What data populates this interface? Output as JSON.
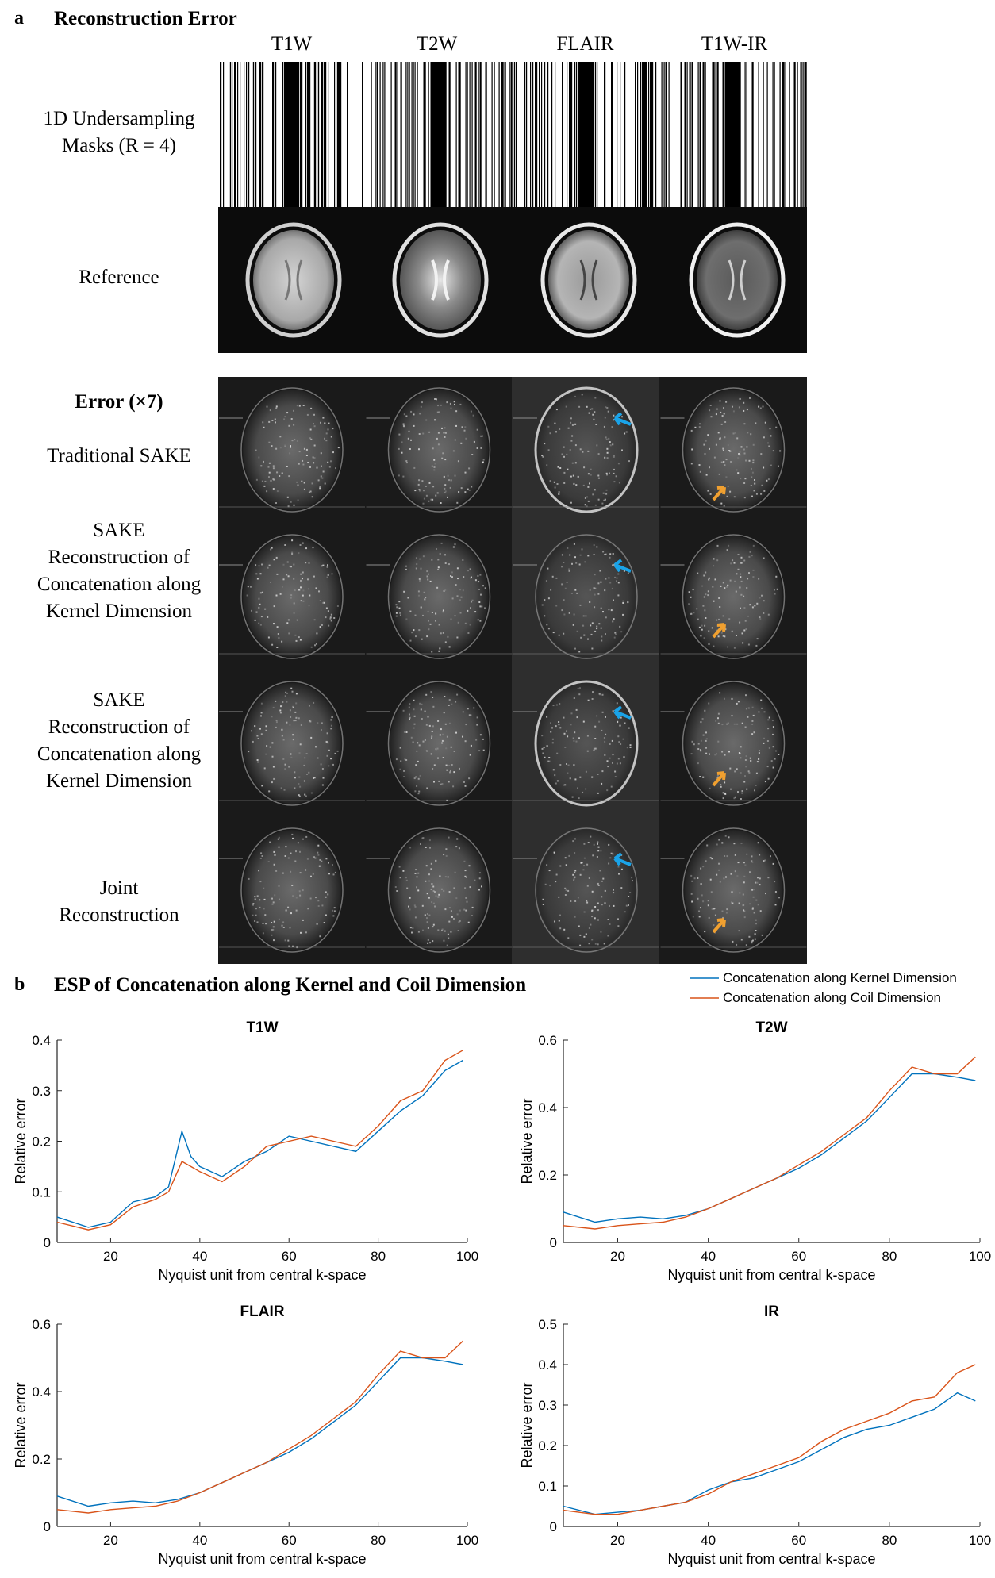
{
  "panel_a": {
    "label": "a",
    "title": "Reconstruction Error",
    "columns": [
      "T1W",
      "T2W",
      "FLAIR",
      "T1W-IR"
    ],
    "row_masks_line1": "1D Undersampling",
    "row_masks_line2": "Masks (R = 4)",
    "row_reference": "Reference",
    "error_header": "Error (×7)",
    "methods": [
      {
        "lines": [
          "Traditional SAKE"
        ]
      },
      {
        "lines": [
          "SAKE",
          "Reconstruction of",
          "Concatenation along",
          "Kernel Dimension"
        ]
      },
      {
        "lines": [
          "SAKE",
          "Reconstruction of",
          "Concatenation along",
          "Kernel Dimension"
        ]
      },
      {
        "lines": [
          "Joint",
          "Reconstruction"
        ]
      }
    ],
    "arrow_colors": {
      "blue": "#1aa3e8",
      "orange": "#f0a030"
    }
  },
  "panel_b": {
    "label": "b",
    "title": "ESP of Concatenation along Kernel and Coil Dimension",
    "legend": [
      {
        "name": "Concatenation along Kernel Dimension",
        "color": "#0072BD"
      },
      {
        "name": "Concatenation along Coil Dimension",
        "color": "#D95319"
      }
    ]
  },
  "chart_data": [
    {
      "type": "line",
      "title": "T1W",
      "xlabel": "Nyquist unit from central k-space",
      "ylabel": "Relative error",
      "xlim": [
        8,
        100
      ],
      "ylim": [
        0,
        0.4
      ],
      "xticks": [
        20,
        40,
        60,
        80,
        100
      ],
      "yticks": [
        0,
        0.1,
        0.2,
        0.3,
        0.4
      ],
      "x": [
        8,
        15,
        20,
        25,
        30,
        33,
        36,
        38,
        40,
        45,
        50,
        55,
        60,
        65,
        70,
        75,
        80,
        85,
        90,
        95,
        99
      ],
      "series": [
        {
          "values": [
            0.05,
            0.03,
            0.04,
            0.08,
            0.09,
            0.11,
            0.22,
            0.17,
            0.15,
            0.13,
            0.16,
            0.18,
            0.21,
            0.2,
            0.19,
            0.18,
            0.22,
            0.26,
            0.29,
            0.34,
            0.36
          ]
        },
        {
          "values": [
            0.04,
            0.025,
            0.035,
            0.07,
            0.085,
            0.1,
            0.16,
            0.15,
            0.14,
            0.12,
            0.15,
            0.19,
            0.2,
            0.21,
            0.2,
            0.19,
            0.23,
            0.28,
            0.3,
            0.36,
            0.38
          ]
        }
      ]
    },
    {
      "type": "line",
      "title": "T2W",
      "xlabel": "Nyquist unit from central k-space",
      "ylabel": "Relative error",
      "xlim": [
        8,
        100
      ],
      "ylim": [
        0,
        0.6
      ],
      "xticks": [
        20,
        40,
        60,
        80,
        100
      ],
      "yticks": [
        0,
        0.2,
        0.4,
        0.6
      ],
      "x": [
        8,
        15,
        20,
        25,
        30,
        35,
        40,
        45,
        50,
        55,
        60,
        65,
        70,
        75,
        80,
        85,
        90,
        95,
        99
      ],
      "series": [
        {
          "values": [
            0.09,
            0.06,
            0.07,
            0.075,
            0.07,
            0.08,
            0.1,
            0.13,
            0.16,
            0.19,
            0.22,
            0.26,
            0.31,
            0.36,
            0.43,
            0.5,
            0.5,
            0.49,
            0.48
          ]
        },
        {
          "values": [
            0.05,
            0.04,
            0.05,
            0.055,
            0.06,
            0.075,
            0.1,
            0.13,
            0.16,
            0.19,
            0.23,
            0.27,
            0.32,
            0.37,
            0.45,
            0.52,
            0.5,
            0.5,
            0.55
          ]
        }
      ]
    },
    {
      "type": "line",
      "title": "FLAIR",
      "xlabel": "Nyquist unit from central k-space",
      "ylabel": "Relative error",
      "xlim": [
        8,
        100
      ],
      "ylim": [
        0,
        0.6
      ],
      "xticks": [
        20,
        40,
        60,
        80,
        100
      ],
      "yticks": [
        0,
        0.2,
        0.4,
        0.6
      ],
      "x": [
        8,
        15,
        20,
        25,
        30,
        35,
        40,
        45,
        50,
        55,
        60,
        65,
        70,
        75,
        80,
        85,
        90,
        95,
        99
      ],
      "series": [
        {
          "values": [
            0.09,
            0.06,
            0.07,
            0.075,
            0.07,
            0.08,
            0.1,
            0.13,
            0.16,
            0.19,
            0.22,
            0.26,
            0.31,
            0.36,
            0.43,
            0.5,
            0.5,
            0.49,
            0.48
          ]
        },
        {
          "values": [
            0.05,
            0.04,
            0.05,
            0.055,
            0.06,
            0.075,
            0.1,
            0.13,
            0.16,
            0.19,
            0.23,
            0.27,
            0.32,
            0.37,
            0.45,
            0.52,
            0.5,
            0.5,
            0.55
          ]
        }
      ]
    },
    {
      "type": "line",
      "title": "IR",
      "xlabel": "Nyquist unit from central k-space",
      "ylabel": "Relative error",
      "xlim": [
        8,
        100
      ],
      "ylim": [
        0,
        0.5
      ],
      "xticks": [
        20,
        40,
        60,
        80,
        100
      ],
      "yticks": [
        0,
        0.1,
        0.2,
        0.3,
        0.4,
        0.5
      ],
      "x": [
        8,
        15,
        20,
        25,
        30,
        35,
        40,
        45,
        50,
        55,
        60,
        65,
        70,
        75,
        80,
        85,
        90,
        95,
        99
      ],
      "series": [
        {
          "values": [
            0.05,
            0.03,
            0.035,
            0.04,
            0.05,
            0.06,
            0.09,
            0.11,
            0.12,
            0.14,
            0.16,
            0.19,
            0.22,
            0.24,
            0.25,
            0.27,
            0.29,
            0.33,
            0.31
          ]
        },
        {
          "values": [
            0.04,
            0.03,
            0.03,
            0.04,
            0.05,
            0.06,
            0.08,
            0.11,
            0.13,
            0.15,
            0.17,
            0.21,
            0.24,
            0.26,
            0.28,
            0.31,
            0.32,
            0.38,
            0.4
          ]
        }
      ]
    }
  ]
}
